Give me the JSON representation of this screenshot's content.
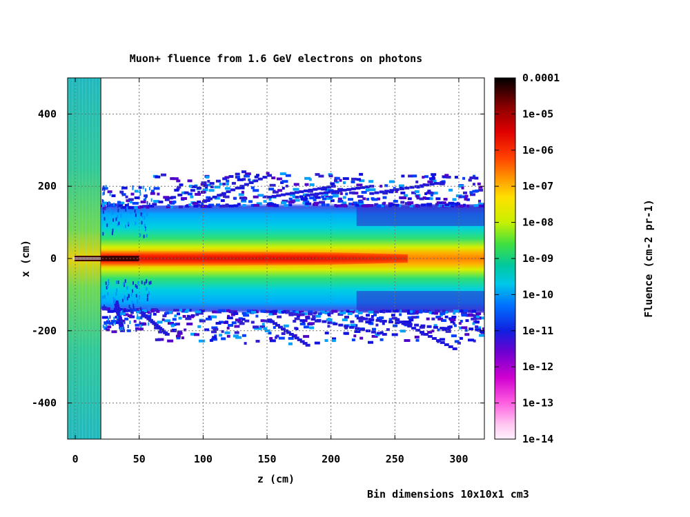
{
  "chart_data": {
    "type": "heatmap",
    "title": "Muon+ fluence from 1.6 GeV electrons on photons",
    "xlabel": "z (cm)",
    "ylabel": "x (cm)",
    "colorbar_label": "Fluence (cm-2 pr-1)",
    "note": "Bin dimensions 10x10x1 cm3",
    "xlim": [
      -6,
      320
    ],
    "ylim": [
      -500,
      500
    ],
    "x_ticks": [
      0,
      50,
      100,
      150,
      200,
      250,
      300
    ],
    "x_tick_labels": [
      "0",
      "50",
      "100",
      "150",
      "200",
      "250",
      "300"
    ],
    "y_ticks": [
      -400,
      -200,
      0,
      200,
      400
    ],
    "y_tick_labels": [
      "-400",
      "-200",
      "0",
      "200",
      "400"
    ],
    "color_scale": "log",
    "color_range": [
      1e-14,
      0.0001
    ],
    "colorbar_ticks": [
      "0.0001",
      "1e-05",
      "1e-06",
      "1e-07",
      "1e-08",
      "1e-09",
      "1e-10",
      "1e-11",
      "1e-12",
      "1e-13",
      "1e-14"
    ],
    "grid": true,
    "target_region_z": [
      -6,
      20
    ]
  }
}
